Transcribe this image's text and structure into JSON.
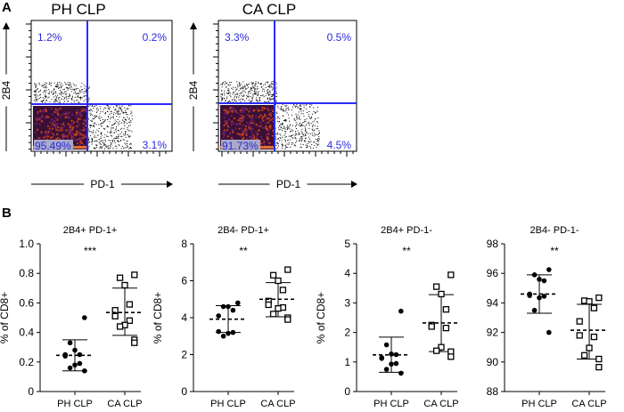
{
  "panel_labels": {
    "a": "A",
    "b": "B"
  },
  "flow_plots": [
    {
      "title": "PH CLP",
      "x_label": "PD-1",
      "y_label": "2B4",
      "quadrants": {
        "upper_left": "1.2%",
        "upper_right": "0.2%",
        "lower_right": "3.1%",
        "lower_left": "95.49%"
      }
    },
    {
      "title": "CA CLP",
      "x_label": "PD-1",
      "y_label": "2B4",
      "quadrants": {
        "upper_left": "3.3%",
        "upper_right": "0.5%",
        "lower_right": "4.5%",
        "lower_left": "91.73%"
      }
    }
  ],
  "colors": {
    "gate": "#2b2bff",
    "quadrant_text": "#2b2bdd",
    "axis": "#000000"
  },
  "chart_data": [
    {
      "type": "scatter",
      "title": "2B4+ PD-1+",
      "ylabel": "% of CD8+",
      "xlabel": "",
      "categories": [
        "PH CLP",
        "CA CLP"
      ],
      "ylim": [
        0,
        1.0
      ],
      "yticks": [
        "0",
        "0.2",
        "0.4",
        "0.6",
        "0.8",
        "1.0"
      ],
      "significance": "***",
      "series": [
        {
          "values": [
            0.5,
            0.33,
            0.28,
            0.25,
            0.25,
            0.24,
            0.19,
            0.18,
            0.16,
            0.14
          ],
          "mean": 0.245,
          "sd_range": [
            0.14,
            0.35
          ],
          "marker": "filled-circle"
        },
        {
          "values": [
            0.79,
            0.77,
            0.72,
            0.59,
            0.55,
            0.51,
            0.48,
            0.45,
            0.44,
            0.35,
            0.33
          ],
          "mean": 0.535,
          "sd_range": [
            0.38,
            0.7
          ],
          "marker": "open-square"
        }
      ]
    },
    {
      "type": "scatter",
      "title": "2B4- PD-1+",
      "ylabel": "% of CD8+",
      "xlabel": "",
      "categories": [
        "PH CLP",
        "CA CLP"
      ],
      "ylim": [
        0,
        8
      ],
      "yticks": [
        "0",
        "2",
        "4",
        "6",
        "8"
      ],
      "significance": "**",
      "series": [
        {
          "values": [
            4.8,
            4.6,
            4.6,
            4.4,
            4.1,
            3.25,
            3.2,
            3.15,
            3.0
          ],
          "mean": 3.92,
          "sd_range": [
            3.2,
            4.65
          ],
          "marker": "filled-circle"
        },
        {
          "values": [
            6.6,
            6.3,
            6.0,
            5.5,
            4.9,
            4.7,
            4.55,
            4.5,
            4.2,
            4.0,
            3.9
          ],
          "mean": 5.0,
          "sd_range": [
            4.05,
            5.9
          ],
          "marker": "open-square"
        }
      ]
    },
    {
      "type": "scatter",
      "title": "2B4+ PD-1-",
      "ylabel": "% of CD8+",
      "xlabel": "",
      "categories": [
        "PH CLP",
        "CA CLP"
      ],
      "ylim": [
        0,
        5
      ],
      "yticks": [
        "0",
        "1",
        "2",
        "3",
        "4",
        "5"
      ],
      "significance": "**",
      "series": [
        {
          "values": [
            2.72,
            1.58,
            1.27,
            1.25,
            1.15,
            1.12,
            0.95,
            0.93,
            0.75,
            0.62
          ],
          "mean": 1.24,
          "sd_range": [
            0.65,
            1.84
          ],
          "marker": "filled-circle"
        },
        {
          "values": [
            3.95,
            3.55,
            3.3,
            2.78,
            2.25,
            2.2,
            2.15,
            1.5,
            1.38,
            1.35,
            1.18
          ],
          "mean": 2.32,
          "sd_range": [
            1.35,
            3.28
          ],
          "marker": "open-square"
        }
      ]
    },
    {
      "type": "scatter",
      "title": "2B4- PD-1-",
      "ylabel": "",
      "xlabel": "",
      "categories": [
        "PH CLP",
        "CA CLP"
      ],
      "ylim": [
        88,
        98
      ],
      "yticks": [
        "88",
        "90",
        "92",
        "94",
        "96",
        "98"
      ],
      "significance": "**",
      "series": [
        {
          "values": [
            96.25,
            95.9,
            95.6,
            95.5,
            94.6,
            94.5,
            94.45,
            94.35,
            93.5,
            92.0
          ],
          "mean": 94.6,
          "sd_range": [
            93.3,
            95.9
          ],
          "marker": "filled-circle"
        },
        {
          "values": [
            94.35,
            94.15,
            94.1,
            93.65,
            92.75,
            91.8,
            91.7,
            90.95,
            90.45,
            90.2,
            89.65
          ],
          "mean": 92.15,
          "sd_range": [
            90.2,
            93.9
          ],
          "marker": "open-square"
        }
      ]
    }
  ]
}
